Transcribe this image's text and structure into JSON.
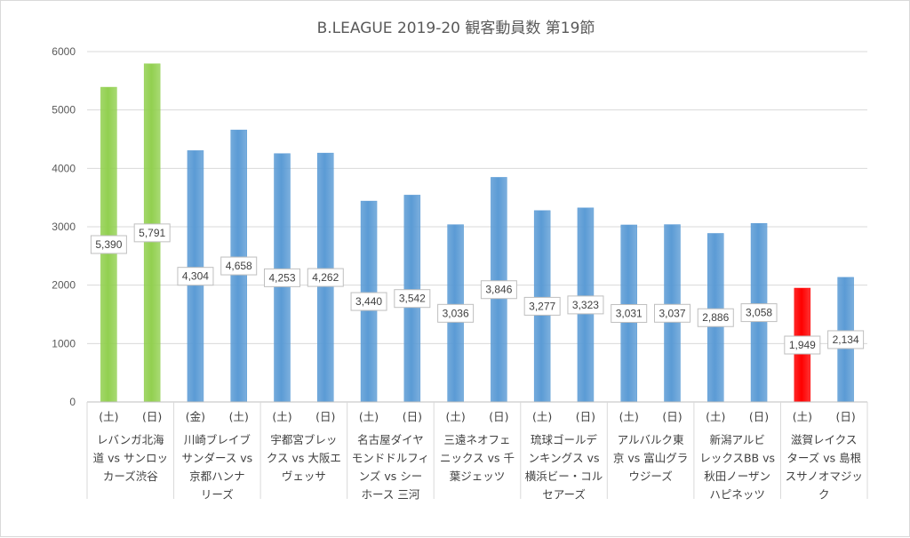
{
  "chart_data": {
    "type": "bar",
    "title": "B.LEAGUE 2019-20 観客動員数 第19節",
    "xlabel": "",
    "ylabel": "",
    "ylim": [
      0,
      6000
    ],
    "yticks": [
      "0",
      "1000",
      "2000",
      "3000",
      "4000",
      "5000",
      "6000"
    ],
    "grid": true,
    "legend": "none",
    "groups": [
      {
        "label": [
          "レバンガ北海",
          "道 vs サンロッ",
          "カーズ渋谷"
        ],
        "days": [
          "(土)",
          "(日)"
        ],
        "values": [
          5390,
          5791
        ],
        "labels": [
          "5,390",
          "5,791"
        ],
        "colors": [
          "#92d050",
          "#92d050"
        ]
      },
      {
        "label": [
          "川崎ブレイブ",
          "サンダース vs",
          "京都ハンナ",
          "リーズ"
        ],
        "days": [
          "(金)",
          "(土)"
        ],
        "values": [
          4304,
          4658
        ],
        "labels": [
          "4,304",
          "4,658"
        ],
        "colors": [
          "#5b9bd5",
          "#5b9bd5"
        ]
      },
      {
        "label": [
          "宇都宮ブレッ",
          "クス vs 大阪エ",
          "ヴェッサ"
        ],
        "days": [
          "(土)",
          "(日)"
        ],
        "values": [
          4253,
          4262
        ],
        "labels": [
          "4,253",
          "4,262"
        ],
        "colors": [
          "#5b9bd5",
          "#5b9bd5"
        ]
      },
      {
        "label": [
          "名古屋ダイヤ",
          "モンドドルフィ",
          "ンズ vs シー",
          "ホース 三河"
        ],
        "days": [
          "(土)",
          "(日)"
        ],
        "values": [
          3440,
          3542
        ],
        "labels": [
          "3,440",
          "3,542"
        ],
        "colors": [
          "#5b9bd5",
          "#5b9bd5"
        ]
      },
      {
        "label": [
          "三遠ネオフェ",
          "ニックス vs 千",
          "葉ジェッツ"
        ],
        "days": [
          "(土)",
          "(日)"
        ],
        "values": [
          3036,
          3846
        ],
        "labels": [
          "3,036",
          "3,846"
        ],
        "colors": [
          "#5b9bd5",
          "#5b9bd5"
        ]
      },
      {
        "label": [
          "琉球ゴールデ",
          "ンキングス vs",
          "横浜ビー・コル",
          "セアーズ"
        ],
        "days": [
          "(土)",
          "(日)"
        ],
        "values": [
          3277,
          3323
        ],
        "labels": [
          "3,277",
          "3,323"
        ],
        "colors": [
          "#5b9bd5",
          "#5b9bd5"
        ]
      },
      {
        "label": [
          "アルバルク東",
          "京 vs 富山グラ",
          "ウジーズ"
        ],
        "days": [
          "(土)",
          "(日)"
        ],
        "values": [
          3031,
          3037
        ],
        "labels": [
          "3,031",
          "3,037"
        ],
        "colors": [
          "#5b9bd5",
          "#5b9bd5"
        ]
      },
      {
        "label": [
          "新潟アルビ",
          "レックスBB vs",
          "秋田ノーザン",
          "ハピネッツ"
        ],
        "days": [
          "(土)",
          "(日)"
        ],
        "values": [
          2886,
          3058
        ],
        "labels": [
          "2,886",
          "3,058"
        ],
        "colors": [
          "#5b9bd5",
          "#5b9bd5"
        ]
      },
      {
        "label": [
          "滋賀レイクス",
          "ターズ vs 島根",
          "スサノオマジッ",
          "ク"
        ],
        "days": [
          "(土)",
          "(日)"
        ],
        "values": [
          1949,
          2134
        ],
        "labels": [
          "1,949",
          "2,134"
        ],
        "colors": [
          "#ff0000",
          "#5b9bd5"
        ]
      }
    ]
  },
  "colors": {
    "green": "#92d050",
    "blue": "#5b9bd5",
    "red": "#ff0000",
    "grid": "#d9d9d9",
    "text": "#595959"
  }
}
